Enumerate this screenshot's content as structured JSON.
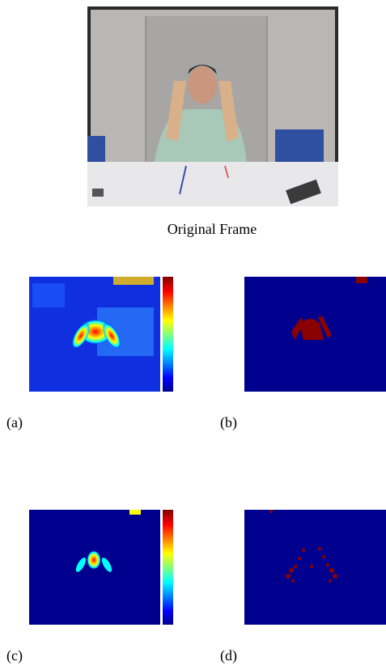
{
  "figure": {
    "caption": "Original Frame",
    "panels": [
      {
        "label": "(a)"
      },
      {
        "label": "(b)"
      },
      {
        "label": "(c)"
      },
      {
        "label": "(d)"
      }
    ]
  }
}
